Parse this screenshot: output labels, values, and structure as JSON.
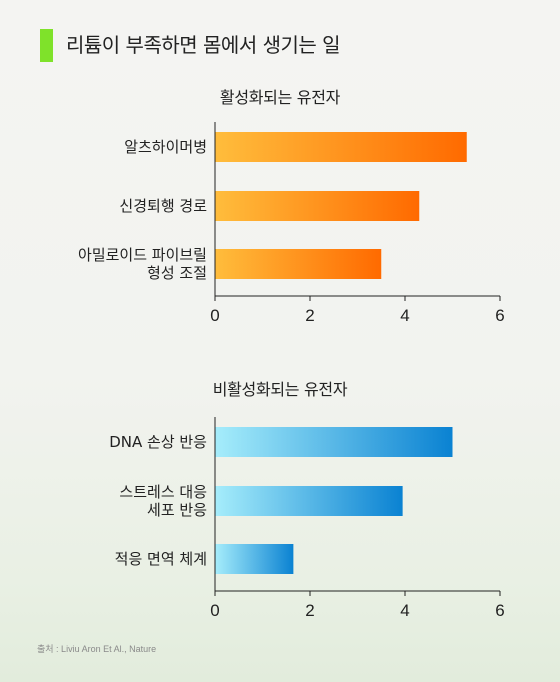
{
  "header": {
    "title": "리튬이 부족하면 몸에서 생기는 일",
    "accent": "#7fe22a"
  },
  "source": "출처 : Liviu Aron Et Al., Nature",
  "chart_data": [
    {
      "type": "bar",
      "orientation": "horizontal",
      "title": "활성화되는 유전자",
      "categories": [
        [
          "알츠하이머병"
        ],
        [
          "신경퇴행 경로"
        ],
        [
          "아밀로이드 파이브릴",
          "형성 조절"
        ]
      ],
      "values": [
        5.3,
        4.3,
        3.5
      ],
      "xlim": [
        0,
        6
      ],
      "xticks": [
        0,
        2,
        4,
        6
      ],
      "gradient": [
        "#ffbd3c",
        "#ff6a00"
      ]
    },
    {
      "type": "bar",
      "orientation": "horizontal",
      "title": "비활성화되는 유전자",
      "categories": [
        [
          "DNA 손상 반응"
        ],
        [
          "스트레스 대응",
          "세포 반응"
        ],
        [
          "적응 면역 체계"
        ]
      ],
      "values": [
        5.0,
        3.95,
        1.65
      ],
      "xlim": [
        0,
        6
      ],
      "xticks": [
        0,
        2,
        4,
        6
      ],
      "gradient": [
        "#a6edfb",
        "#0a82d2"
      ]
    }
  ]
}
